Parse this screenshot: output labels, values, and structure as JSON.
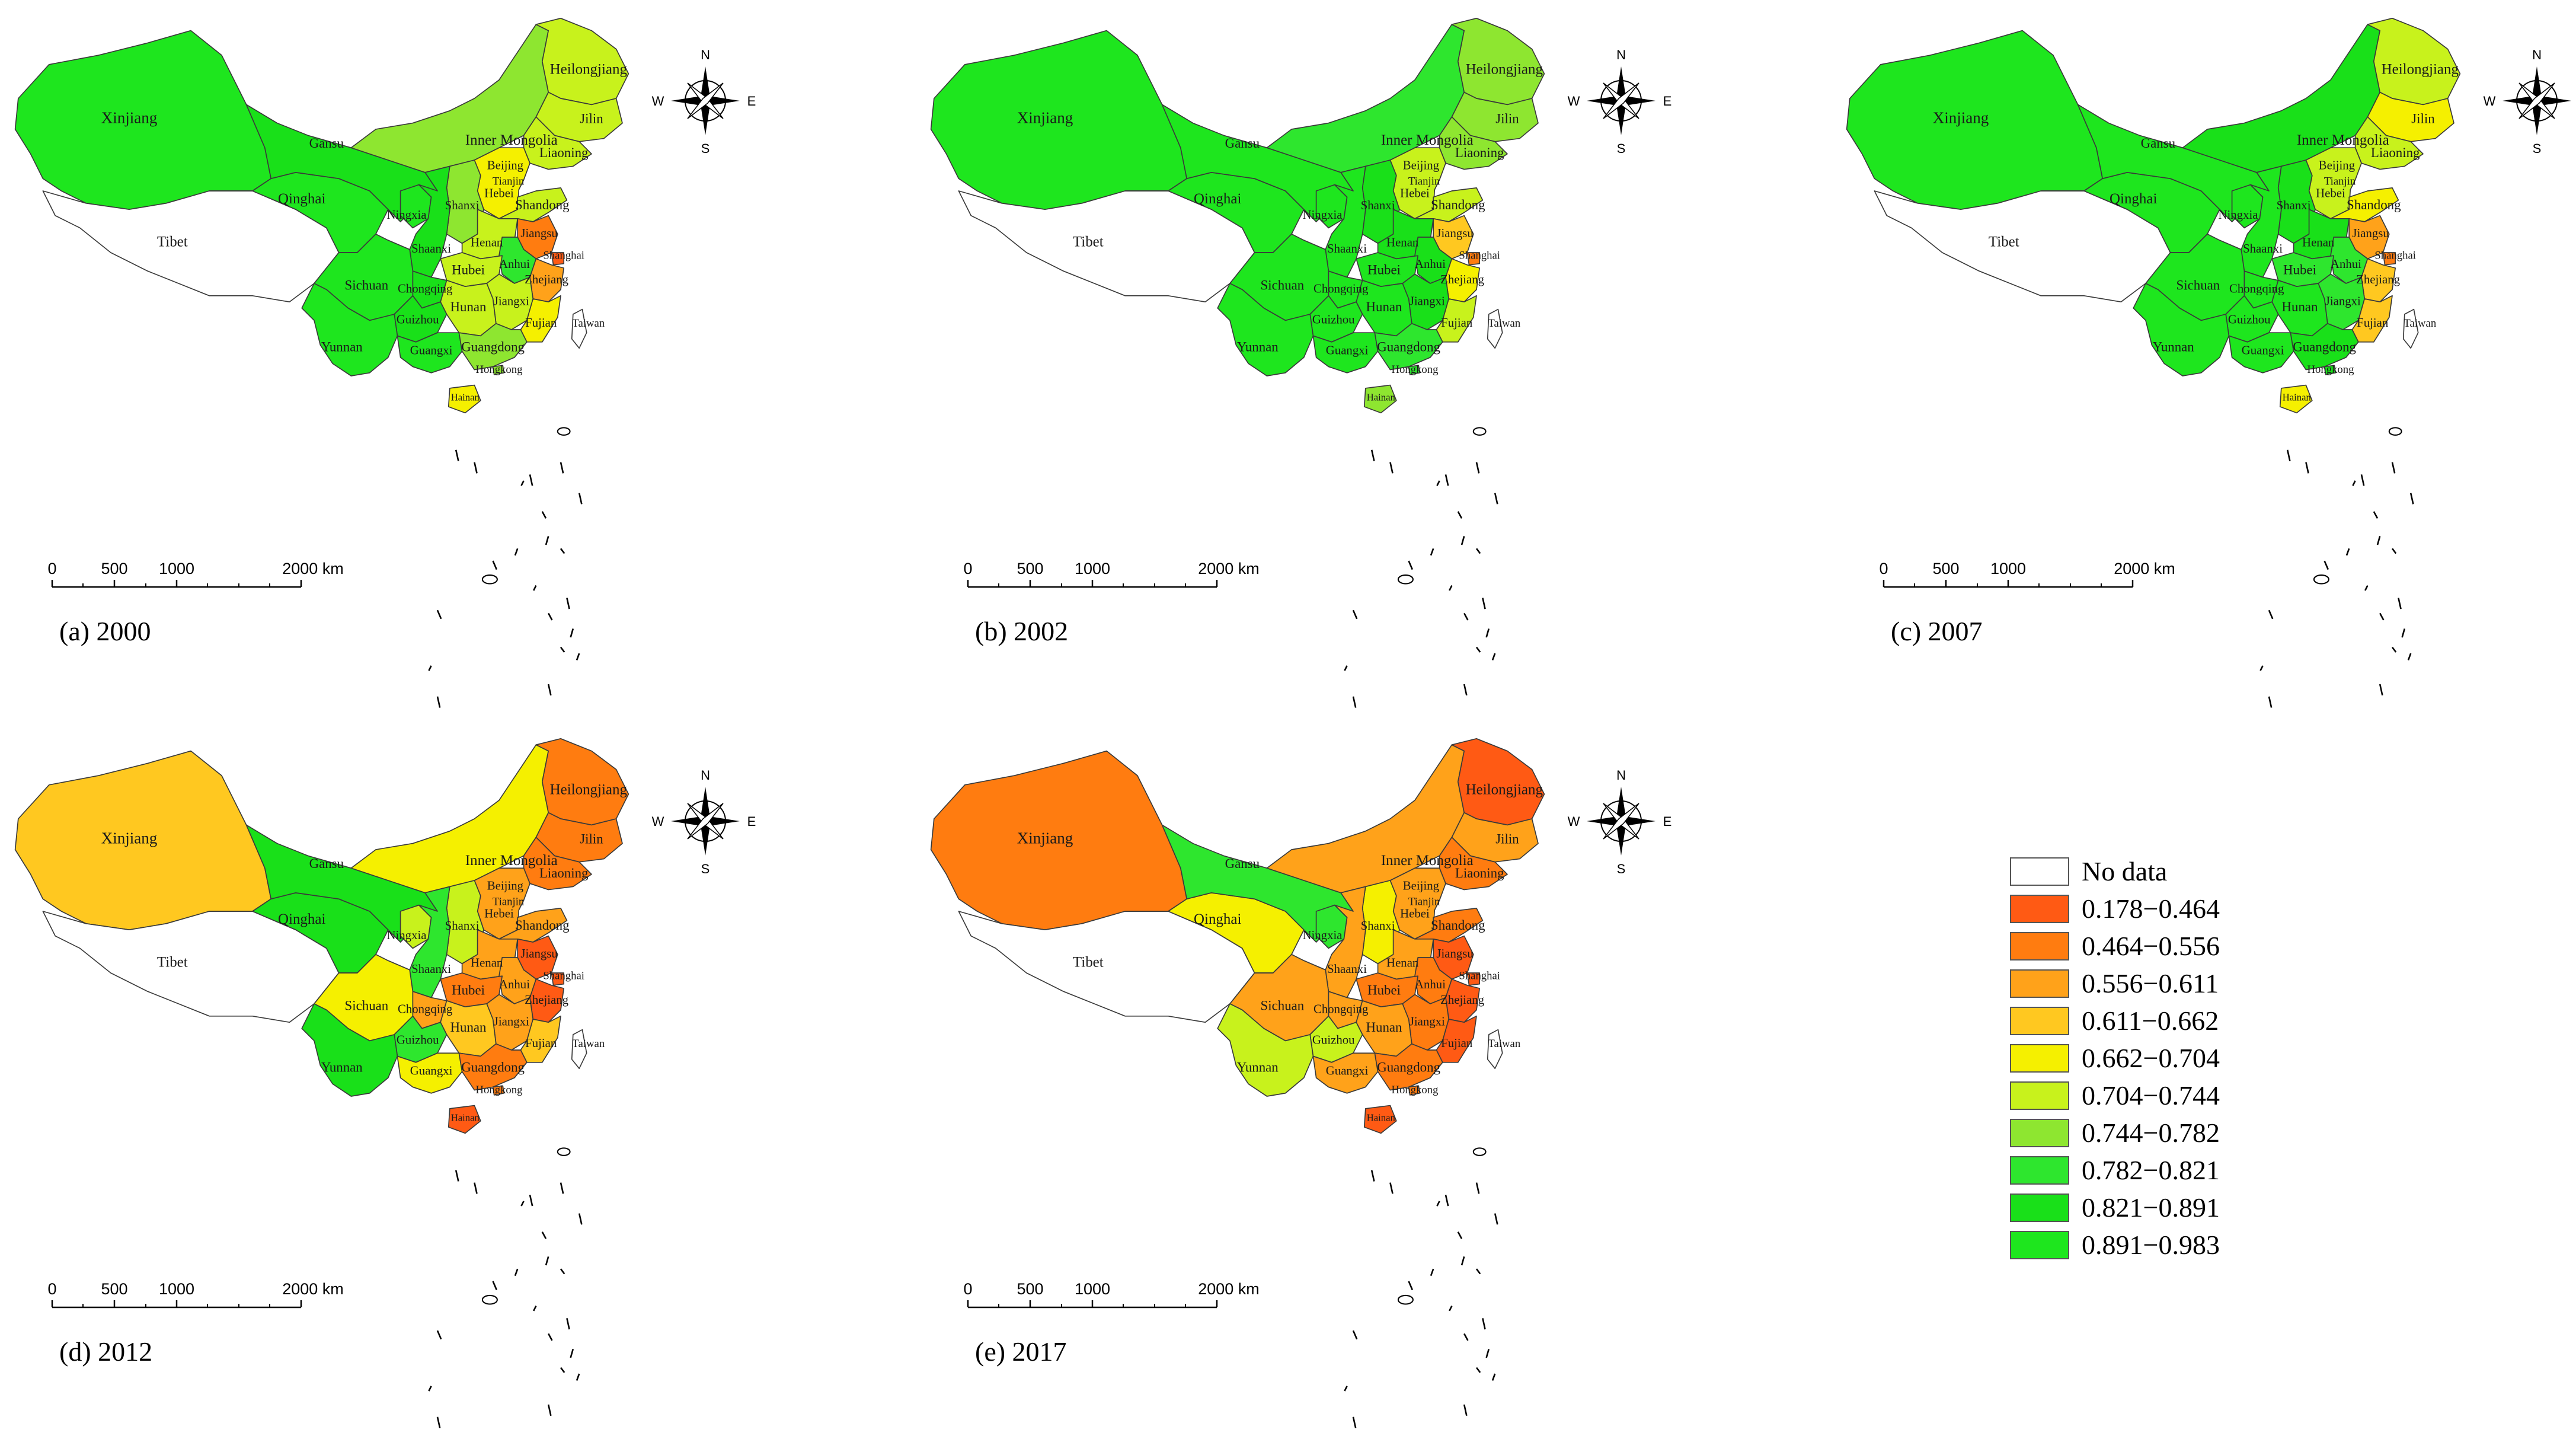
{
  "palette": {
    "c0": "#ffffff",
    "c1": "#ff5a14",
    "c2": "#ff7c10",
    "c3": "#ffa21a",
    "c4": "#ffc820",
    "c5": "#f5f000",
    "c6": "#c8f21c",
    "c7": "#8ee630",
    "c8": "#2ee62e",
    "c9": "#19e019",
    "c10": "#1ee61e"
  },
  "legend": [
    {
      "class": "c0",
      "label": "No data"
    },
    {
      "class": "c1",
      "label": "0.178−0.464"
    },
    {
      "class": "c2",
      "label": "0.464−0.556"
    },
    {
      "class": "c3",
      "label": "0.556−0.611"
    },
    {
      "class": "c4",
      "label": "0.611−0.662"
    },
    {
      "class": "c5",
      "label": "0.662−0.704"
    },
    {
      "class": "c6",
      "label": "0.704−0.744"
    },
    {
      "class": "c7",
      "label": "0.744−0.782"
    },
    {
      "class": "c8",
      "label": "0.782−0.821"
    },
    {
      "class": "c9",
      "label": "0.821−0.891"
    },
    {
      "class": "c10",
      "label": "0.891−0.983"
    }
  ],
  "compass": {
    "n": "N",
    "s": "S",
    "e": "E",
    "w": "W"
  },
  "scale_bar": {
    "ticks": [
      "0",
      "500",
      "1000",
      "2000 km"
    ]
  },
  "province_names": {
    "xinjiang": "Xinjiang",
    "tibet": "Tibet",
    "qinghai": "Qinghai",
    "gansu": "Gansu",
    "inner_mongolia": "Inner Mongolia",
    "heilongjiang": "Heilongjiang",
    "jilin": "Jilin",
    "liaoning": "Liaoning",
    "beijing": "Beijing",
    "tianjin": "Tianjin",
    "hebei": "Hebei",
    "shanxi": "Shanxi",
    "ningxia": "Ningxia",
    "shaanxi": "Shaanxi",
    "shandong": "Shandong",
    "henan": "Henan",
    "jiangsu": "Jiangsu",
    "shanghai": "Shanghai",
    "anhui": "Anhui",
    "hubei": "Hubei",
    "zhejiang": "Zhejiang",
    "sichuan": "Sichuan",
    "chongqing": "Chongqing",
    "jiangxi": "Jiangxi",
    "hunan": "Hunan",
    "guizhou": "Guizhou",
    "fujian": "Fujian",
    "yunnan": "Yunnan",
    "guangxi": "Guangxi",
    "guangdong": "Guangdong",
    "hongkong": "Hongkong",
    "taiwan": "Taiwan",
    "hainan": "Hainan"
  },
  "panels": [
    {
      "label": "(a) 2000",
      "classes": {
        "xinjiang": "c10",
        "tibet": "c0",
        "qinghai": "c10",
        "gansu": "c9",
        "inner_mongolia": "c7",
        "heilongjiang": "c6",
        "jilin": "c6",
        "liaoning": "c6",
        "beijing": "c4",
        "tianjin": "c4",
        "hebei": "c5",
        "shanxi": "c7",
        "ningxia": "c10",
        "shaanxi": "c9",
        "shandong": "c6",
        "henan": "c6",
        "jiangsu": "c2",
        "shanghai": "c1",
        "anhui": "c8",
        "hubei": "c6",
        "zhejiang": "c3",
        "sichuan": "c10",
        "chongqing": "c9",
        "jiangxi": "c6",
        "hunan": "c6",
        "guizhou": "c9",
        "fujian": "c5",
        "yunnan": "c10",
        "guangxi": "c10",
        "guangdong": "c7",
        "hongkong": "c7",
        "taiwan": "c0",
        "hainan": "c5"
      }
    },
    {
      "label": "(b) 2002",
      "classes": {
        "xinjiang": "c10",
        "tibet": "c0",
        "qinghai": "c10",
        "gansu": "c10",
        "inner_mongolia": "c8",
        "heilongjiang": "c7",
        "jilin": "c7",
        "liaoning": "c7",
        "beijing": "c3",
        "tianjin": "c4",
        "hebei": "c6",
        "shanxi": "c9",
        "ningxia": "c10",
        "shaanxi": "c10",
        "shandong": "c6",
        "henan": "c9",
        "jiangsu": "c4",
        "shanghai": "c2",
        "anhui": "c9",
        "hubei": "c10",
        "zhejiang": "c5",
        "sichuan": "c10",
        "chongqing": "c10",
        "jiangxi": "c9",
        "hunan": "c10",
        "guizhou": "c10",
        "fujian": "c6",
        "yunnan": "c10",
        "guangxi": "c10",
        "guangdong": "c8",
        "hongkong": "c8",
        "taiwan": "c0",
        "hainan": "c7"
      }
    },
    {
      "label": "(c) 2007",
      "classes": {
        "xinjiang": "c10",
        "tibet": "c0",
        "qinghai": "c10",
        "gansu": "c10",
        "inner_mongolia": "c9",
        "heilongjiang": "c6",
        "jilin": "c5",
        "liaoning": "c6",
        "beijing": "c3",
        "tianjin": "c4",
        "hebei": "c6",
        "shanxi": "c9",
        "ningxia": "c10",
        "shaanxi": "c10",
        "shandong": "c5",
        "henan": "c9",
        "jiangsu": "c3",
        "shanghai": "c2",
        "anhui": "c8",
        "hubei": "c8",
        "zhejiang": "c4",
        "sichuan": "c10",
        "chongqing": "c10",
        "jiangxi": "c8",
        "hunan": "c10",
        "guizhou": "c10",
        "fujian": "c4",
        "yunnan": "c10",
        "guangxi": "c10",
        "guangdong": "c9",
        "hongkong": "c9",
        "taiwan": "c0",
        "hainan": "c5"
      }
    },
    {
      "label": "(d) 2012",
      "classes": {
        "xinjiang": "c4",
        "tibet": "c0",
        "qinghai": "c9",
        "gansu": "c9",
        "inner_mongolia": "c5",
        "heilongjiang": "c2",
        "jilin": "c2",
        "liaoning": "c2",
        "beijing": "c2",
        "tianjin": "c2",
        "hebei": "c3",
        "shanxi": "c6",
        "ningxia": "c6",
        "shaanxi": "c8",
        "shandong": "c3",
        "henan": "c3",
        "jiangsu": "c1",
        "shanghai": "c1",
        "anhui": "c3",
        "hubei": "c2",
        "zhejiang": "c1",
        "sichuan": "c5",
        "chongqing": "c3",
        "jiangxi": "c3",
        "hunan": "c4",
        "guizhou": "c8",
        "fujian": "c4",
        "yunnan": "c9",
        "guangxi": "c5",
        "guangdong": "c2",
        "hongkong": "c2",
        "taiwan": "c0",
        "hainan": "c1"
      }
    },
    {
      "label": "(e) 2017",
      "classes": {
        "xinjiang": "c2",
        "tibet": "c0",
        "qinghai": "c5",
        "gansu": "c8",
        "inner_mongolia": "c3",
        "heilongjiang": "c1",
        "jilin": "c3",
        "liaoning": "c2",
        "beijing": "c2",
        "tianjin": "c2",
        "hebei": "c3",
        "shanxi": "c5",
        "ningxia": "c8",
        "shaanxi": "c3",
        "shandong": "c2",
        "henan": "c3",
        "jiangsu": "c1",
        "shanghai": "c1",
        "anhui": "c2",
        "hubei": "c2",
        "zhejiang": "c1",
        "sichuan": "c3",
        "chongqing": "c3",
        "jiangxi": "c2",
        "hunan": "c3",
        "guizhou": "c6",
        "fujian": "c1",
        "yunnan": "c6",
        "guangxi": "c3",
        "guangdong": "c2",
        "hongkong": "c2",
        "taiwan": "c0",
        "hainan": "c1"
      }
    }
  ]
}
